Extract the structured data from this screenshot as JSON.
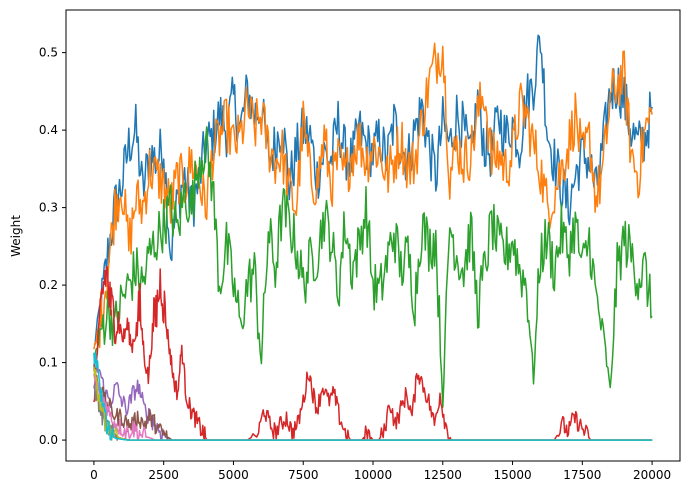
{
  "chart_data": {
    "type": "line",
    "title": "",
    "xlabel": "",
    "ylabel": "Weight",
    "xlim": [
      -1000,
      21000
    ],
    "ylim": [
      -0.027,
      0.555
    ],
    "x_ticks": [
      0,
      2500,
      5000,
      7500,
      10000,
      12500,
      15000,
      17500,
      20000
    ],
    "x_tick_labels": [
      "0",
      "2500",
      "5000",
      "7500",
      "10000",
      "12500",
      "15000",
      "17500",
      "20000"
    ],
    "y_ticks": [
      0.0,
      0.1,
      0.2,
      0.3,
      0.4,
      0.5
    ],
    "y_tick_labels": [
      "0.0",
      "0.1",
      "0.2",
      "0.3",
      "0.4",
      "0.5"
    ],
    "grid": false,
    "legend": "none",
    "series": [
      {
        "color": "#1f77b4",
        "x": [
          0,
          250,
          500,
          750,
          1000,
          1250,
          1500,
          1750,
          2000,
          2250,
          2500,
          2750,
          3000,
          3250,
          3500,
          3750,
          4000,
          4250,
          4500,
          4750,
          5000,
          5250,
          5500,
          5750,
          6000,
          6250,
          6500,
          6750,
          7000,
          7250,
          7500,
          7750,
          8000,
          8250,
          8500,
          8750,
          9000,
          9250,
          9500,
          9750,
          10000,
          10250,
          10500,
          10750,
          11000,
          11250,
          11500,
          11750,
          12000,
          12250,
          12500,
          12750,
          13000,
          13250,
          13500,
          13750,
          14000,
          14250,
          14500,
          14750,
          15000,
          15250,
          15500,
          15750,
          16000,
          16250,
          16500,
          16750,
          17000,
          17250,
          17500,
          17750,
          18000,
          18250,
          18500,
          18750,
          19000,
          19250,
          19500,
          19750,
          20000
        ],
        "values": [
          0.12,
          0.17,
          0.24,
          0.3,
          0.33,
          0.38,
          0.4,
          0.32,
          0.37,
          0.36,
          0.38,
          0.24,
          0.31,
          0.34,
          0.3,
          0.33,
          0.38,
          0.39,
          0.42,
          0.4,
          0.44,
          0.4,
          0.45,
          0.42,
          0.43,
          0.36,
          0.38,
          0.41,
          0.33,
          0.37,
          0.4,
          0.39,
          0.34,
          0.37,
          0.36,
          0.41,
          0.37,
          0.36,
          0.4,
          0.38,
          0.37,
          0.39,
          0.36,
          0.41,
          0.38,
          0.36,
          0.4,
          0.43,
          0.38,
          0.34,
          0.41,
          0.38,
          0.42,
          0.4,
          0.36,
          0.44,
          0.38,
          0.37,
          0.42,
          0.39,
          0.41,
          0.38,
          0.44,
          0.46,
          0.52,
          0.4,
          0.36,
          0.33,
          0.3,
          0.34,
          0.37,
          0.36,
          0.32,
          0.38,
          0.45,
          0.46,
          0.44,
          0.4,
          0.38,
          0.39,
          0.43
        ]
      },
      {
        "color": "#ff7f0e",
        "x": [
          0,
          250,
          500,
          750,
          1000,
          1250,
          1500,
          1750,
          2000,
          2250,
          2500,
          2750,
          3000,
          3250,
          3500,
          3750,
          4000,
          4250,
          4500,
          4750,
          5000,
          5250,
          5500,
          5750,
          6000,
          6250,
          6500,
          6750,
          7000,
          7250,
          7500,
          7750,
          8000,
          8250,
          8500,
          8750,
          9000,
          9250,
          9500,
          9750,
          10000,
          10250,
          10500,
          10750,
          11000,
          11250,
          11500,
          11750,
          12000,
          12250,
          12500,
          12750,
          13000,
          13250,
          13500,
          13750,
          14000,
          14250,
          14500,
          14750,
          15000,
          15250,
          15500,
          15750,
          16000,
          16250,
          16500,
          16750,
          17000,
          17250,
          17500,
          17750,
          18000,
          18250,
          18500,
          18750,
          19000,
          19250,
          19500,
          19750,
          20000
        ],
        "values": [
          0.11,
          0.16,
          0.22,
          0.3,
          0.33,
          0.25,
          0.31,
          0.3,
          0.35,
          0.34,
          0.33,
          0.3,
          0.34,
          0.33,
          0.36,
          0.34,
          0.3,
          0.37,
          0.39,
          0.41,
          0.38,
          0.39,
          0.43,
          0.4,
          0.42,
          0.38,
          0.36,
          0.37,
          0.32,
          0.3,
          0.41,
          0.34,
          0.33,
          0.39,
          0.33,
          0.36,
          0.34,
          0.37,
          0.39,
          0.36,
          0.38,
          0.37,
          0.34,
          0.36,
          0.39,
          0.35,
          0.36,
          0.41,
          0.46,
          0.49,
          0.51,
          0.34,
          0.38,
          0.36,
          0.37,
          0.42,
          0.45,
          0.36,
          0.37,
          0.35,
          0.37,
          0.43,
          0.42,
          0.38,
          0.35,
          0.3,
          0.32,
          0.35,
          0.38,
          0.42,
          0.36,
          0.39,
          0.31,
          0.35,
          0.44,
          0.46,
          0.47,
          0.37,
          0.34,
          0.4,
          0.42
        ]
      },
      {
        "color": "#2ca02c",
        "x": [
          0,
          250,
          500,
          750,
          1000,
          1250,
          1500,
          1750,
          2000,
          2250,
          2500,
          2750,
          3000,
          3250,
          3500,
          3750,
          4000,
          4250,
          4500,
          4750,
          5000,
          5250,
          5500,
          5750,
          6000,
          6250,
          6500,
          6750,
          7000,
          7250,
          7500,
          7750,
          8000,
          8250,
          8500,
          8750,
          9000,
          9250,
          9500,
          9750,
          10000,
          10250,
          10500,
          10750,
          11000,
          11250,
          11500,
          11750,
          12000,
          12250,
          12500,
          12750,
          13000,
          13250,
          13500,
          13750,
          14000,
          14250,
          14500,
          14750,
          15000,
          15250,
          15500,
          15750,
          16000,
          16250,
          16500,
          16750,
          17000,
          17250,
          17500,
          17750,
          18000,
          18250,
          18500,
          18750,
          19000,
          19250,
          19500,
          19750,
          20000
        ],
        "values": [
          0.1,
          0.14,
          0.17,
          0.15,
          0.18,
          0.2,
          0.22,
          0.2,
          0.24,
          0.26,
          0.28,
          0.3,
          0.27,
          0.32,
          0.3,
          0.36,
          0.38,
          0.33,
          0.2,
          0.25,
          0.2,
          0.15,
          0.2,
          0.22,
          0.1,
          0.27,
          0.22,
          0.3,
          0.28,
          0.25,
          0.2,
          0.23,
          0.24,
          0.29,
          0.26,
          0.19,
          0.28,
          0.22,
          0.25,
          0.3,
          0.2,
          0.19,
          0.23,
          0.27,
          0.22,
          0.24,
          0.18,
          0.28,
          0.25,
          0.26,
          0.05,
          0.28,
          0.24,
          0.22,
          0.27,
          0.17,
          0.22,
          0.28,
          0.25,
          0.24,
          0.26,
          0.22,
          0.2,
          0.08,
          0.24,
          0.26,
          0.22,
          0.27,
          0.24,
          0.28,
          0.22,
          0.26,
          0.18,
          0.14,
          0.06,
          0.22,
          0.26,
          0.24,
          0.21,
          0.22,
          0.16
        ]
      },
      {
        "color": "#d62728",
        "x": [
          0,
          150,
          300,
          450,
          600,
          750,
          900,
          1050,
          1200,
          1350,
          1500,
          1650,
          1800,
          1950,
          2100,
          2250,
          2400,
          2550,
          2700,
          2850,
          3000,
          3150,
          3300,
          3450,
          3600,
          3750,
          3900,
          4050,
          4500,
          5000,
          5500,
          5900,
          6100,
          6300,
          6500,
          6700,
          6900,
          7100,
          7300,
          7500,
          7700,
          7850,
          8000,
          8200,
          8400,
          8600,
          8800,
          9000,
          9200,
          9400,
          9600,
          9800,
          10000,
          10200,
          10400,
          10600,
          10800,
          11000,
          11200,
          11400,
          11600,
          11800,
          12000,
          12200,
          12400,
          12600,
          12800,
          13500,
          14500,
          15500,
          16500,
          16800,
          17000,
          17200,
          17400,
          17600,
          17800,
          18500,
          19500,
          20000
        ],
        "values": [
          0.05,
          0.13,
          0.19,
          0.22,
          0.17,
          0.16,
          0.15,
          0.13,
          0.15,
          0.12,
          0.14,
          0.17,
          0.11,
          0.08,
          0.14,
          0.17,
          0.21,
          0.16,
          0.12,
          0.08,
          0.06,
          0.12,
          0.06,
          0.04,
          0.03,
          0.02,
          0.01,
          0.0,
          0.0,
          0.0,
          0.0,
          0.01,
          0.04,
          0.02,
          0.01,
          0.02,
          0.03,
          0.01,
          0.02,
          0.05,
          0.09,
          0.06,
          0.04,
          0.07,
          0.05,
          0.06,
          0.03,
          0.01,
          0.0,
          0.0,
          0.0,
          0.01,
          0.0,
          0.0,
          0.01,
          0.05,
          0.02,
          0.04,
          0.06,
          0.03,
          0.09,
          0.07,
          0.05,
          0.02,
          0.06,
          0.02,
          0.0,
          0.0,
          0.0,
          0.0,
          0.0,
          0.02,
          0.01,
          0.03,
          0.02,
          0.01,
          0.0,
          0.0,
          0.0,
          0.0
        ]
      },
      {
        "color": "#9467bd",
        "x": [
          0,
          200,
          400,
          600,
          800,
          1000,
          1200,
          1400,
          1600,
          1800,
          2000,
          2200,
          2400,
          2600,
          2800,
          3000,
          4000,
          8000,
          12000,
          16000,
          20000
        ],
        "values": [
          0.1,
          0.09,
          0.06,
          0.05,
          0.07,
          0.05,
          0.04,
          0.06,
          0.07,
          0.04,
          0.03,
          0.02,
          0.01,
          0.005,
          0.0,
          0.0,
          0.0,
          0.0,
          0.0,
          0.0,
          0.0
        ]
      },
      {
        "color": "#8c564b",
        "x": [
          0,
          200,
          400,
          600,
          800,
          1000,
          1200,
          1400,
          1600,
          1800,
          2000,
          2200,
          2400,
          2600,
          2800,
          3000,
          4000,
          8000,
          12000,
          16000,
          20000
        ],
        "values": [
          0.09,
          0.07,
          0.05,
          0.04,
          0.03,
          0.03,
          0.02,
          0.02,
          0.03,
          0.02,
          0.03,
          0.02,
          0.01,
          0.005,
          0.0,
          0.0,
          0.0,
          0.0,
          0.0,
          0.0,
          0.0
        ]
      },
      {
        "color": "#e377c2",
        "x": [
          0,
          200,
          400,
          600,
          800,
          1000,
          1200,
          1400,
          1600,
          1800,
          2000,
          2200,
          2400,
          3000,
          5000,
          10000,
          15000,
          20000
        ],
        "values": [
          0.08,
          0.06,
          0.05,
          0.03,
          0.02,
          0.015,
          0.01,
          0.015,
          0.01,
          0.005,
          0.003,
          0.0,
          0.0,
          0.0,
          0.0,
          0.0,
          0.0,
          0.0
        ]
      },
      {
        "color": "#7f7f7f",
        "x": [
          0,
          150,
          300,
          450,
          600,
          800,
          1000,
          1300,
          1600,
          2000,
          3000,
          6000,
          10000,
          15000,
          20000
        ],
        "values": [
          0.07,
          0.05,
          0.03,
          0.02,
          0.01,
          0.005,
          0.002,
          0.0,
          0.0,
          0.0,
          0.0,
          0.0,
          0.0,
          0.0,
          0.0
        ]
      },
      {
        "color": "#bcbd22",
        "x": [
          0,
          150,
          300,
          450,
          600,
          800,
          1000,
          1200,
          1500,
          2000,
          3000,
          6000,
          10000,
          15000,
          20000
        ],
        "values": [
          0.1,
          0.06,
          0.04,
          0.02,
          0.01,
          0.005,
          0.002,
          0.0,
          0.0,
          0.0,
          0.0,
          0.0,
          0.0,
          0.0,
          0.0
        ]
      },
      {
        "color": "#17becf",
        "x": [
          0,
          100,
          200,
          300,
          400,
          500,
          600,
          700,
          800,
          1000,
          1200,
          1500,
          2000,
          3000,
          6000,
          10000,
          15000,
          20000
        ],
        "values": [
          0.11,
          0.1,
          0.07,
          0.05,
          0.03,
          0.015,
          0.008,
          0.004,
          0.002,
          0.001,
          0.0,
          0.0,
          0.0,
          0.0,
          0.0,
          0.0,
          0.0,
          0.0
        ]
      }
    ]
  }
}
